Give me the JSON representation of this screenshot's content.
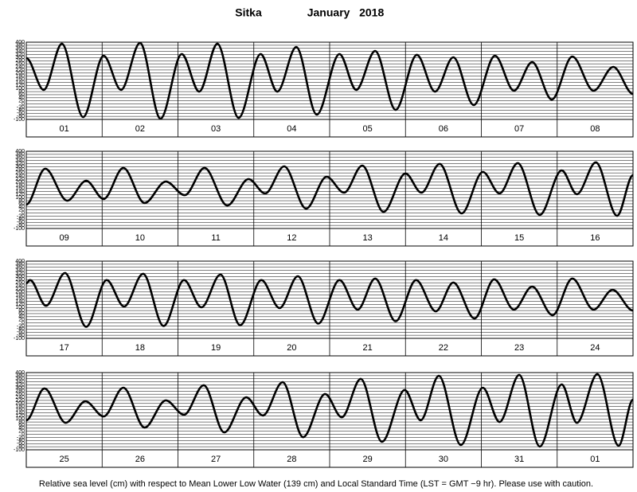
{
  "title": {
    "location": "Sitka",
    "date": "January   2018"
  },
  "footnote": "Relative sea level (cm) with respect to Mean Lower Low Water (139 cm) and Local Standard Time (LST = GMT −9 hr). Please use with caution.",
  "chart_data": [
    {
      "type": "line",
      "categories": [
        "01",
        "02",
        "03",
        "04",
        "05",
        "06",
        "07",
        "08"
      ],
      "xlim": [
        0,
        8
      ],
      "ylim": [
        -100,
        400
      ],
      "grid": true,
      "yticks": [
        400,
        380,
        360,
        340,
        320,
        300,
        280,
        260,
        240,
        220,
        200,
        180,
        160,
        140,
        120,
        100,
        80,
        60,
        40,
        20,
        0,
        -20,
        -40,
        -60,
        -80,
        -100
      ],
      "series": [
        {
          "color": "#000000",
          "x": [
            0,
            0.23,
            0.47,
            0.75,
            1.02,
            1.25,
            1.5,
            1.77,
            2.05,
            2.28,
            2.52,
            2.8,
            3.09,
            3.31,
            3.56,
            3.83,
            4.13,
            4.35,
            4.6,
            4.87,
            5.15,
            5.39,
            5.63,
            5.9,
            6.18,
            6.43,
            6.67,
            6.93,
            7.2,
            7.48,
            7.74,
            8
          ],
          "values": [
            297,
            91,
            390,
            -85,
            312,
            91,
            395,
            -95,
            323,
            80,
            390,
            -90,
            323,
            80,
            369,
            -69,
            323,
            91,
            343,
            -38,
            318,
            80,
            302,
            -7,
            312,
            86,
            271,
            29,
            307,
            86,
            240,
            65
          ]
        }
      ]
    },
    {
      "type": "line",
      "categories": [
        "09",
        "10",
        "11",
        "12",
        "13",
        "14",
        "15",
        "16"
      ],
      "xlim": [
        0,
        8
      ],
      "ylim": [
        -100,
        400
      ],
      "grid": true,
      "yticks": [
        400,
        380,
        360,
        340,
        320,
        300,
        280,
        260,
        240,
        220,
        200,
        180,
        160,
        140,
        120,
        100,
        80,
        60,
        40,
        20,
        0,
        -20,
        -40,
        -60,
        -80,
        -100
      ],
      "series": [
        {
          "color": "#000000",
          "x": [
            0,
            0.25,
            0.54,
            0.79,
            1.02,
            1.28,
            1.56,
            1.84,
            2.09,
            2.35,
            2.65,
            2.93,
            3.15,
            3.4,
            3.69,
            3.96,
            4.19,
            4.43,
            4.71,
            5.0,
            5.21,
            5.45,
            5.74,
            6.02,
            6.24,
            6.48,
            6.77,
            7.06,
            7.26,
            7.51,
            7.79,
            8
          ],
          "values": [
            55,
            287,
            80,
            209,
            91,
            292,
            65,
            204,
            116,
            292,
            49,
            220,
            127,
            302,
            29,
            235,
            132,
            307,
            8,
            256,
            132,
            318,
            -2,
            266,
            127,
            323,
            -12,
            276,
            122,
            328,
            -18,
            245
          ]
        }
      ]
    },
    {
      "type": "line",
      "categories": [
        "17",
        "18",
        "19",
        "20",
        "21",
        "22",
        "23",
        "24"
      ],
      "xlim": [
        0,
        8
      ],
      "ylim": [
        -100,
        400
      ],
      "grid": true,
      "yticks": [
        400,
        380,
        360,
        340,
        320,
        300,
        280,
        260,
        240,
        220,
        200,
        180,
        160,
        140,
        120,
        100,
        80,
        60,
        40,
        20,
        0,
        -20,
        -40,
        -60,
        -80,
        -100
      ],
      "series": [
        {
          "color": "#000000",
          "x": [
            0,
            0.05,
            0.26,
            0.51,
            0.79,
            1.06,
            1.29,
            1.54,
            1.81,
            2.08,
            2.31,
            2.56,
            2.82,
            3.1,
            3.34,
            3.58,
            3.85,
            4.13,
            4.37,
            4.6,
            4.87,
            5.14,
            5.4,
            5.63,
            5.91,
            6.17,
            6.43,
            6.67,
            6.94,
            7.2,
            7.48,
            7.73,
            8
          ],
          "values": [
            256,
            277,
            111,
            323,
            -25,
            277,
            106,
            318,
            -20,
            277,
            101,
            313,
            -15,
            277,
            96,
            302,
            -4,
            277,
            86,
            287,
            11,
            277,
            75,
            261,
            29,
            282,
            86,
            235,
            50,
            287,
            86,
            214,
            80
          ]
        }
      ]
    },
    {
      "type": "line",
      "categories": [
        "25",
        "26",
        "27",
        "28",
        "29",
        "30",
        "31",
        "01"
      ],
      "xlim": [
        0,
        8
      ],
      "ylim": [
        -100,
        400
      ],
      "grid": true,
      "yticks": [
        400,
        380,
        360,
        340,
        320,
        300,
        280,
        260,
        240,
        220,
        200,
        180,
        160,
        140,
        120,
        100,
        80,
        60,
        40,
        20,
        0,
        -20,
        -40,
        -60,
        -80,
        -100
      ],
      "series": [
        {
          "color": "#000000",
          "x": [
            0,
            0.24,
            0.52,
            0.78,
            1.02,
            1.28,
            1.56,
            1.84,
            2.08,
            2.34,
            2.61,
            2.9,
            3.12,
            3.38,
            3.65,
            3.94,
            4.16,
            4.41,
            4.69,
            4.99,
            5.2,
            5.44,
            5.73,
            6.02,
            6.24,
            6.5,
            6.77,
            7.06,
            7.26,
            7.53,
            7.81,
            8
          ],
          "values": [
            91,
            297,
            75,
            214,
            116,
            302,
            44,
            220,
            127,
            318,
            13,
            240,
            122,
            338,
            -18,
            261,
            111,
            359,
            -48,
            287,
            91,
            379,
            -69,
            302,
            80,
            385,
            -79,
            323,
            75,
            390,
            -74,
            225
          ]
        }
      ]
    }
  ]
}
